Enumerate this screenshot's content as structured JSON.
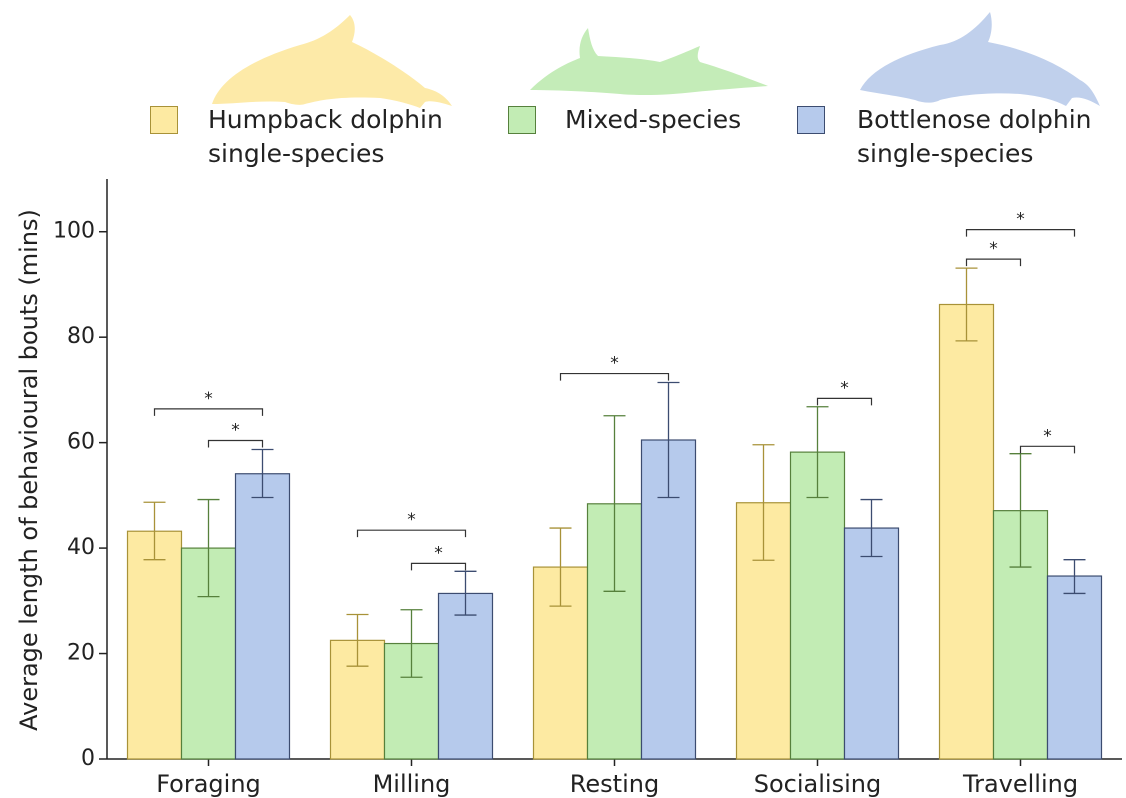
{
  "chart_data": {
    "type": "bar",
    "y_label": "Average length of behavioural bouts (mins)",
    "categories": [
      "Foraging",
      "Milling",
      "Resting",
      "Socialising",
      "Travelling"
    ],
    "series": [
      {
        "name": "Humpback dolphin single-species",
        "color": "#fdeaa2",
        "edge": "#a89238",
        "values": [
          43.2,
          22.5,
          36.4,
          48.6,
          86.2
        ],
        "lower": [
          37.8,
          17.6,
          29.0,
          37.7,
          79.3
        ],
        "upper": [
          48.7,
          27.4,
          43.8,
          59.6,
          93.1
        ]
      },
      {
        "name": "Mixed-species",
        "color": "#c2ecb4",
        "edge": "#56803c",
        "values": [
          40.0,
          21.9,
          48.4,
          58.2,
          47.1
        ],
        "lower": [
          30.8,
          15.5,
          31.8,
          49.6,
          36.4
        ],
        "upper": [
          49.2,
          28.3,
          65.1,
          66.8,
          57.9
        ]
      },
      {
        "name": "Bottlenose dolphin single-species",
        "color": "#b6caec",
        "edge": "#3c4c70",
        "values": [
          54.1,
          31.4,
          60.5,
          43.8,
          34.7
        ],
        "lower": [
          49.6,
          27.3,
          49.6,
          38.4,
          31.4
        ],
        "upper": [
          58.7,
          35.6,
          71.4,
          49.2,
          37.8
        ]
      }
    ],
    "brackets": [
      {
        "category": 0,
        "from": 0,
        "to": 2,
        "y": 66.4,
        "label": "*"
      },
      {
        "category": 0,
        "from": 1,
        "to": 2,
        "y": 60.4,
        "label": "*"
      },
      {
        "category": 1,
        "from": 0,
        "to": 2,
        "y": 43.4,
        "label": "*"
      },
      {
        "category": 1,
        "from": 1,
        "to": 2,
        "y": 37.1,
        "label": "*"
      },
      {
        "category": 2,
        "from": 0,
        "to": 2,
        "y": 73.1,
        "label": "*"
      },
      {
        "category": 3,
        "from": 1,
        "to": 2,
        "y": 68.4,
        "label": "*"
      },
      {
        "category": 4,
        "from": 0,
        "to": 2,
        "y": 100.4,
        "label": "*"
      },
      {
        "category": 4,
        "from": 0,
        "to": 1,
        "y": 94.8,
        "label": "*"
      },
      {
        "category": 4,
        "from": 1,
        "to": 2,
        "y": 59.3,
        "label": "*"
      }
    ],
    "ylim": [
      0,
      110
    ],
    "yticks": [
      0,
      20,
      40,
      60,
      80,
      100
    ]
  }
}
